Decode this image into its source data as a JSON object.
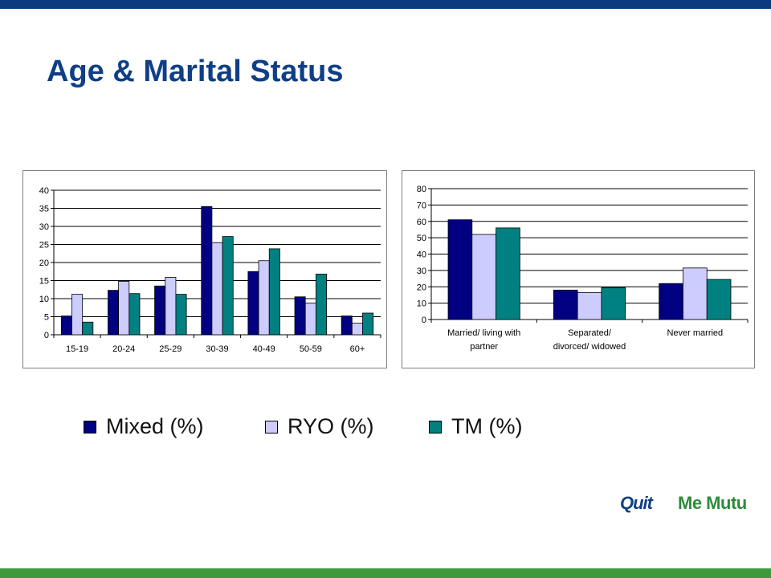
{
  "slide": {
    "title": "Age & Marital Status"
  },
  "colors": {
    "mixed": "#000080",
    "ryo": "#ccccff",
    "tm": "#008080",
    "title": "#0f3f86",
    "top_bar": "#0a3a7a",
    "bottom_bar": "#3c9a3c"
  },
  "legend": [
    {
      "label": "Mixed (%)",
      "color": "#000080"
    },
    {
      "label": "RYO (%)",
      "color": "#ccccff"
    },
    {
      "label": "TM (%)",
      "color": "#008080"
    }
  ],
  "logos": {
    "quit": "Quit",
    "mutu": "Me Mutu"
  },
  "chart_data": [
    {
      "type": "bar",
      "categories": [
        "15-19",
        "20-24",
        "25-29",
        "30-39",
        "40-49",
        "50-59",
        "60+"
      ],
      "series": [
        {
          "name": "Mixed (%)",
          "values": [
            5.2,
            12.3,
            13.5,
            35.5,
            17.5,
            10.5,
            5.2
          ]
        },
        {
          "name": "RYO (%)",
          "values": [
            11.2,
            14.8,
            15.9,
            25.5,
            20.5,
            8.8,
            3.2
          ]
        },
        {
          "name": "TM (%)",
          "values": [
            3.5,
            11.4,
            11.2,
            27.2,
            23.8,
            16.8,
            6.0
          ]
        }
      ],
      "ylim": [
        0,
        40
      ],
      "yticks": [
        "0",
        "5",
        "10",
        "15",
        "20",
        "25",
        "30",
        "35",
        "40"
      ],
      "grid": true,
      "xlabel": "",
      "ylabel": ""
    },
    {
      "type": "bar",
      "categories": [
        [
          "Married/ living with",
          "partner"
        ],
        [
          "Separated/",
          "divorced/ widowed"
        ],
        [
          "Never married"
        ]
      ],
      "series": [
        {
          "name": "Mixed (%)",
          "values": [
            61,
            18,
            22
          ]
        },
        {
          "name": "RYO (%)",
          "values": [
            52,
            16.5,
            31.5
          ]
        },
        {
          "name": "TM (%)",
          "values": [
            56,
            19.5,
            24.5
          ]
        }
      ],
      "ylim": [
        0,
        80
      ],
      "yticks": [
        "0",
        "10",
        "20",
        "30",
        "40",
        "50",
        "60",
        "70",
        "80"
      ],
      "grid": true,
      "xlabel": "",
      "ylabel": ""
    }
  ]
}
